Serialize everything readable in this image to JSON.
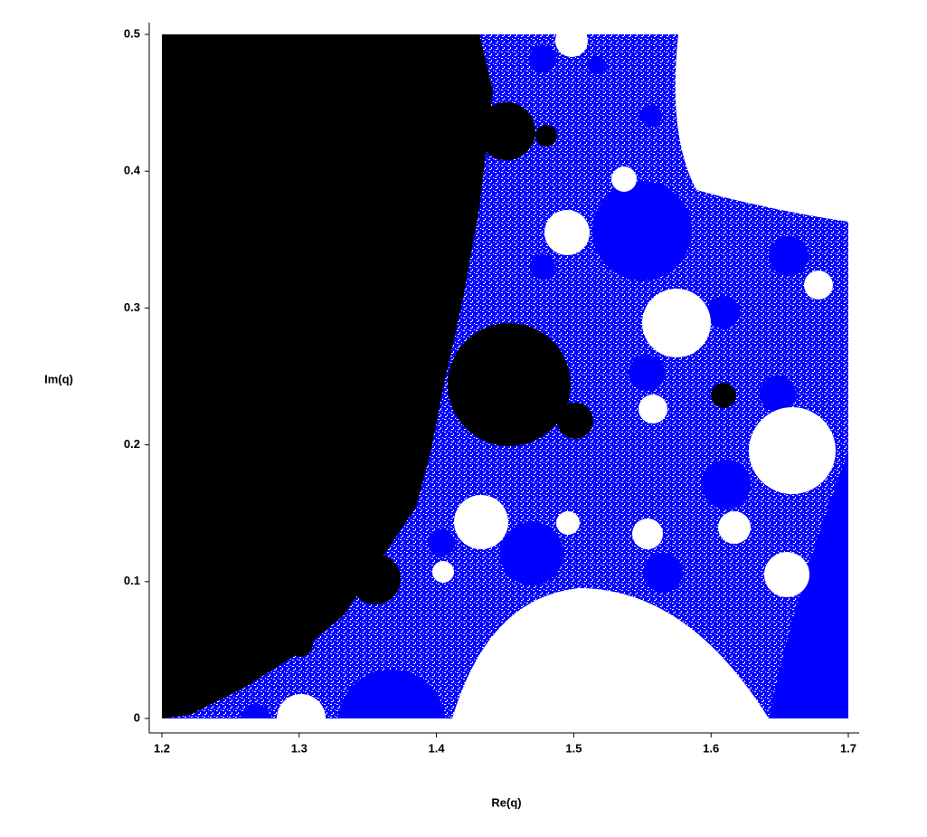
{
  "chart_data": {
    "type": "region",
    "xlabel": "Re(q)",
    "ylabel": "Im(q)",
    "xlim": [
      1.2,
      1.7
    ],
    "ylim": [
      0,
      0.5
    ],
    "xticks": [
      1.2,
      1.3,
      1.4,
      1.5,
      1.6,
      1.7
    ],
    "yticks": [
      0,
      0.1,
      0.2,
      0.3,
      0.4,
      0.5
    ],
    "colors": [
      "#000000",
      "#0000ff",
      "#ffffff"
    ]
  }
}
